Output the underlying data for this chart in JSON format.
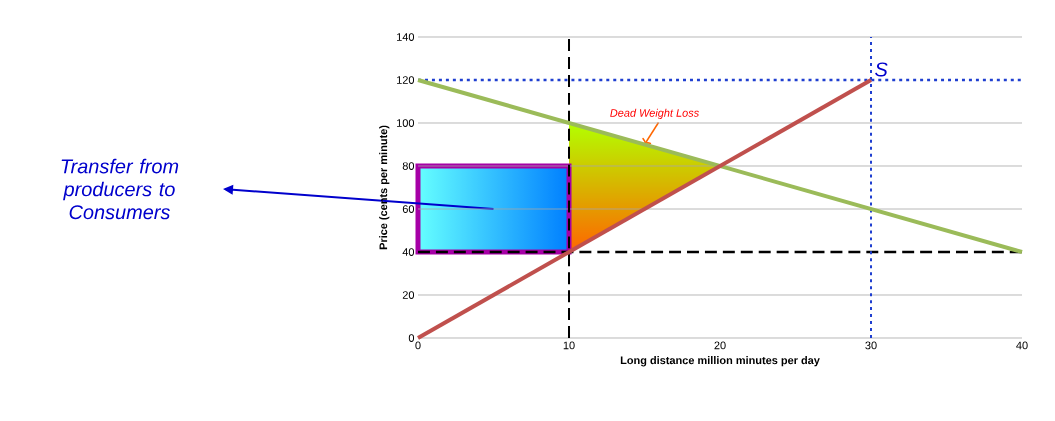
{
  "chart_data": {
    "type": "line",
    "xlabel": "Long distance million minutes per day",
    "ylabel": "Price (cents per minute)",
    "xlim": [
      0,
      40
    ],
    "ylim": [
      0,
      140
    ],
    "xticks": [
      0,
      10,
      20,
      30,
      40
    ],
    "yticks": [
      0,
      20,
      40,
      60,
      80,
      100,
      120,
      140
    ],
    "grid": "y",
    "marker": "none",
    "series": [
      {
        "x": [
          0,
          40
        ],
        "values": [
          120,
          40
        ],
        "color": "#9bbb59"
      },
      {
        "x": [
          0,
          30
        ],
        "values": [
          0,
          120
        ],
        "color": "#c0504d"
      }
    ],
    "ref_lines": [
      {
        "axis": "y",
        "value": 40,
        "color": "#000000",
        "line_style": "dashed"
      },
      {
        "axis": "x",
        "value": 10,
        "color": "#000000",
        "line_style": "dashed"
      },
      {
        "axis": "y",
        "value": 120,
        "color": "#1f3fd0",
        "line_style": "dotted"
      },
      {
        "axis": "x",
        "value": 30,
        "color": "#1f3fd0",
        "line_style": "dotted"
      }
    ],
    "annotations": [
      {
        "text": "S",
        "x": 30,
        "y": 120
      },
      {
        "text": "Dead Weight Loss",
        "x": 15,
        "y": 90
      },
      "Transfer from producers to Consumers"
    ]
  }
}
